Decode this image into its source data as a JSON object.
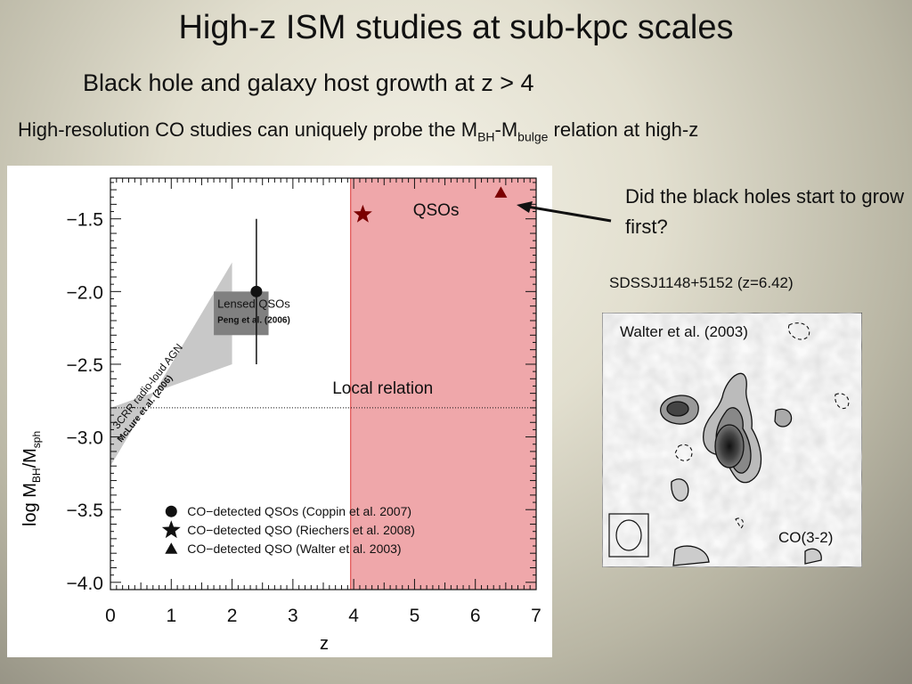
{
  "slide": {
    "title": "High-z ISM studies at sub-kpc scales",
    "subtitle": "Black hole and galaxy host growth at z > 4",
    "note_main": "High-resolution CO studies can uniquely probe the M",
    "note_sub1": "BH",
    "note_dash": "-M",
    "note_sub2": "bulge",
    "note_tail": " relation at high-z",
    "question": "Did the black holes start to grow first?",
    "object_label": "SDSSJ1148+5152 (z=6.42)"
  },
  "chart_data": {
    "type": "scatter",
    "xlabel": "z",
    "ylabel_main": "log  M",
    "ylabel_sub1": "BH",
    "ylabel_slash": "/M",
    "ylabel_sub2": "sph",
    "xlim": [
      0,
      7
    ],
    "ylim": [
      -4.05,
      -1.22
    ],
    "xticks": [
      0,
      1,
      2,
      3,
      4,
      5,
      6,
      7
    ],
    "yticks": [
      -1.5,
      -2.0,
      -2.5,
      -3.0,
      -3.5,
      -4.0
    ],
    "ytick_labels": [
      "−1.5",
      "−2.0",
      "−2.5",
      "−3.0",
      "−3.5",
      "−4.0"
    ],
    "local_relation": {
      "y": -2.8,
      "label": "Local relation"
    },
    "qso_region": {
      "x0": 3.95,
      "x1": 7.0,
      "label": "QSOs",
      "color": "#e98a8e"
    },
    "points": [
      {
        "name": "CO-detected QSOs (Coppin et al. 2007)",
        "marker": "circle",
        "x": 2.4,
        "y": -2.0,
        "yerr_low": 0.5,
        "yerr_high": 0.5
      },
      {
        "name": "CO-detected QSO (Riechers et al. 2008)",
        "marker": "star",
        "x": 4.15,
        "y": -1.47
      },
      {
        "name": "CO-detected QSO (Walter et al. 2003)",
        "marker": "triangle",
        "x": 6.42,
        "y": -1.32
      }
    ],
    "agn_band": {
      "label1": "3CRR radio-loud AGN",
      "label2": "McLure et al. (2006)",
      "polygon": [
        [
          0,
          -3.2
        ],
        [
          2.0,
          -1.8
        ],
        [
          2.0,
          -2.5
        ],
        [
          0,
          -2.8
        ]
      ],
      "color": "#c8c8c8"
    },
    "lensed_box": {
      "label1": "Lensed QSOs",
      "label2": "Peng et al. (2006)",
      "x0": 1.7,
      "x1": 2.6,
      "y0": -2.3,
      "y1": -2.0,
      "color": "#808080"
    },
    "legend": [
      {
        "marker": "circle",
        "label": "CO−detected QSOs (Coppin et al. 2007)"
      },
      {
        "marker": "star",
        "label": "CO−detected QSO (Riechers et al. 2008)"
      },
      {
        "marker": "triangle",
        "label": "CO−detected QSO (Walter et al. 2003)"
      }
    ],
    "marker_color_high_z": "#7a0000"
  },
  "co_map": {
    "credit": "Walter et al. (2003)",
    "line": "CO(3-2)"
  }
}
